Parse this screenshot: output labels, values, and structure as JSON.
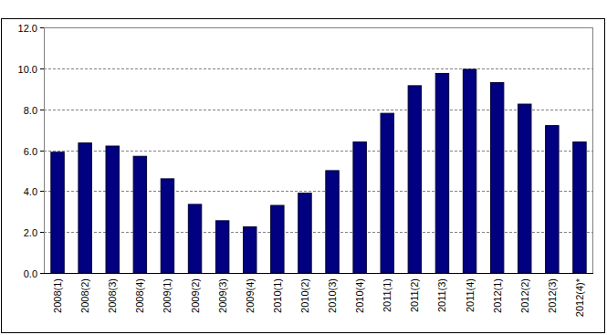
{
  "chart_data": {
    "type": "bar",
    "categories": [
      "2008(1)",
      "2008(2)",
      "2008(3)",
      "2008(4)",
      "2009(1)",
      "2009(2)",
      "2009(3)",
      "2009(4)",
      "2010(1)",
      "2010(2)",
      "2010(3)",
      "2010(4)",
      "2011(1)",
      "2011(2)",
      "2011(3)",
      "2011(4)",
      "2012(1)",
      "2012(2)",
      "2012(3)",
      "2012(4)*"
    ],
    "values": [
      5.9,
      6.35,
      6.2,
      5.7,
      4.6,
      3.35,
      2.55,
      2.25,
      3.3,
      3.9,
      5.0,
      6.4,
      7.8,
      9.15,
      9.75,
      9.95,
      9.3,
      8.25,
      7.2,
      6.4
    ],
    "color": "#000080",
    "ylim": [
      0,
      12
    ],
    "yticks": [
      {
        "value": 0,
        "label": "0.0"
      },
      {
        "value": 2,
        "label": "2.0"
      },
      {
        "value": 4,
        "label": "4.0"
      },
      {
        "value": 6,
        "label": "6.0"
      },
      {
        "value": 8,
        "label": "8.0"
      },
      {
        "value": 10,
        "label": "10.0"
      },
      {
        "value": 12,
        "label": "12.0"
      }
    ],
    "grid": true
  }
}
